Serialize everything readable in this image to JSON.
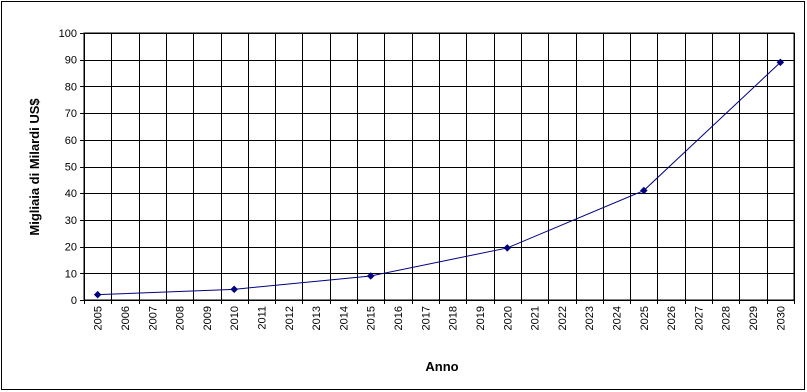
{
  "chart_data": {
    "type": "line",
    "title": "",
    "xlabel": "Anno",
    "ylabel": "Migliaia di Milardi US$",
    "categories": [
      "2005",
      "2006",
      "2007",
      "2008",
      "2009",
      "2010",
      "2011",
      "2012",
      "2013",
      "2014",
      "2015",
      "2016",
      "2017",
      "2018",
      "2019",
      "2020",
      "2021",
      "2022",
      "2023",
      "2024",
      "2025",
      "2026",
      "2027",
      "2028",
      "2029",
      "2030"
    ],
    "yticks": [
      "0",
      "10",
      "20",
      "30",
      "40",
      "50",
      "60",
      "70",
      "80",
      "90",
      "100"
    ],
    "ylim": [
      0,
      100
    ],
    "grid": true,
    "legend": "none",
    "series": [
      {
        "x": [
          "2005",
          "2010",
          "2015",
          "2020",
          "2025",
          "2030"
        ],
        "values": [
          2,
          4,
          9,
          19.5,
          41,
          89
        ],
        "color": "#000080"
      }
    ]
  }
}
